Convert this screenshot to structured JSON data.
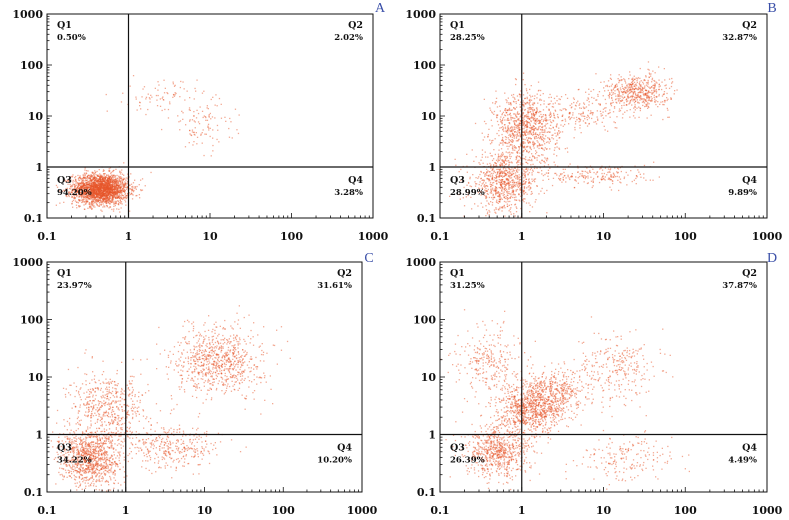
{
  "chart_data": [
    {
      "type": "scatter",
      "panel": "A",
      "x_scale": "log",
      "y_scale": "log",
      "xlim": [
        0.1,
        1000
      ],
      "ylim": [
        0.1,
        1000
      ],
      "x_ticks": [
        "0.1",
        "1",
        "10",
        "100",
        "1000"
      ],
      "y_ticks": [
        "0.1",
        "1",
        "10",
        "100",
        "1000"
      ],
      "gate": {
        "x": 1,
        "y": 1
      },
      "quadrants": [
        {
          "name": "Q1",
          "percent": "0.50%"
        },
        {
          "name": "Q2",
          "percent": "2.02%"
        },
        {
          "name": "Q3",
          "percent": "94.20%"
        },
        {
          "name": "Q4",
          "percent": "3.28%"
        }
      ],
      "clusters": [
        {
          "x": 0.45,
          "y": 0.38,
          "sx": 0.17,
          "sy": 0.15,
          "weight": 0.93
        },
        {
          "x": 2.5,
          "y": 25,
          "sx": 0.22,
          "sy": 0.17,
          "weight": 0.03
        },
        {
          "x": 8,
          "y": 7,
          "sx": 0.2,
          "sy": 0.25,
          "weight": 0.04
        }
      ],
      "color": "#e8552a"
    },
    {
      "type": "scatter",
      "panel": "B",
      "x_scale": "log",
      "y_scale": "log",
      "xlim": [
        0.1,
        1000
      ],
      "ylim": [
        0.1,
        1000
      ],
      "x_ticks": [
        "0.1",
        "1",
        "10",
        "100",
        "1000"
      ],
      "y_ticks": [
        "0.1",
        "1",
        "10",
        "100",
        "1000"
      ],
      "gate": {
        "x": 1,
        "y": 1
      },
      "quadrants": [
        {
          "name": "Q1",
          "percent": "28.25%"
        },
        {
          "name": "Q2",
          "percent": "32.87%"
        },
        {
          "name": "Q3",
          "percent": "28.99%"
        },
        {
          "name": "Q4",
          "percent": "9.89%"
        }
      ],
      "clusters": [
        {
          "x": 0.6,
          "y": 0.5,
          "sx": 0.2,
          "sy": 0.28,
          "weight": 0.3
        },
        {
          "x": 1.1,
          "y": 6,
          "sx": 0.2,
          "sy": 0.35,
          "weight": 0.35
        },
        {
          "x": 25,
          "y": 30,
          "sx": 0.2,
          "sy": 0.18,
          "weight": 0.2
        },
        {
          "x": 8,
          "y": 0.7,
          "sx": 0.35,
          "sy": 0.12,
          "weight": 0.08
        },
        {
          "x": 5,
          "y": 12,
          "sx": 0.25,
          "sy": 0.2,
          "weight": 0.07
        }
      ],
      "color": "#e8552a"
    },
    {
      "type": "scatter",
      "panel": "C",
      "x_scale": "log",
      "y_scale": "log",
      "xlim": [
        0.1,
        1000
      ],
      "ylim": [
        0.1,
        1000
      ],
      "x_ticks": [
        "0.1",
        "1",
        "10",
        "100",
        "1000"
      ],
      "y_ticks": [
        "0.1",
        "1",
        "10",
        "100",
        "1000"
      ],
      "gate": {
        "x": 1,
        "y": 1
      },
      "quadrants": [
        {
          "name": "Q1",
          "percent": "23.97%"
        },
        {
          "name": "Q2",
          "percent": "31.61%"
        },
        {
          "name": "Q3",
          "percent": "34.22%"
        },
        {
          "name": "Q4",
          "percent": "10.20%"
        }
      ],
      "clusters": [
        {
          "x": 0.35,
          "y": 0.4,
          "sx": 0.2,
          "sy": 0.25,
          "weight": 0.38
        },
        {
          "x": 0.6,
          "y": 3,
          "sx": 0.25,
          "sy": 0.3,
          "weight": 0.2
        },
        {
          "x": 15,
          "y": 20,
          "sx": 0.28,
          "sy": 0.3,
          "weight": 0.3
        },
        {
          "x": 4,
          "y": 0.6,
          "sx": 0.3,
          "sy": 0.18,
          "weight": 0.12
        }
      ],
      "color": "#e8552a"
    },
    {
      "type": "scatter",
      "panel": "D",
      "x_scale": "log",
      "y_scale": "log",
      "xlim": [
        0.1,
        1000
      ],
      "ylim": [
        0.1,
        1000
      ],
      "x_ticks": [
        "0.1",
        "1",
        "10",
        "100",
        "1000"
      ],
      "y_ticks": [
        "0.1",
        "1",
        "10",
        "100",
        "1000"
      ],
      "gate": {
        "x": 1,
        "y": 1
      },
      "quadrants": [
        {
          "name": "Q1",
          "percent": "31.25%"
        },
        {
          "name": "Q2",
          "percent": "37.87%"
        },
        {
          "name": "Q3",
          "percent": "26.39%"
        },
        {
          "name": "Q4",
          "percent": "4.49%"
        }
      ],
      "clusters": [
        {
          "x": 0.5,
          "y": 0.5,
          "sx": 0.2,
          "sy": 0.22,
          "weight": 0.26
        },
        {
          "x": 1.3,
          "y": 3,
          "sx": 0.2,
          "sy": 0.22,
          "weight": 0.35
        },
        {
          "x": 3,
          "y": 6,
          "sx": 0.2,
          "sy": 0.2,
          "weight": 0.12
        },
        {
          "x": 0.4,
          "y": 20,
          "sx": 0.2,
          "sy": 0.3,
          "weight": 0.1
        },
        {
          "x": 15,
          "y": 15,
          "sx": 0.25,
          "sy": 0.3,
          "weight": 0.1
        },
        {
          "x": 20,
          "y": 0.4,
          "sx": 0.3,
          "sy": 0.2,
          "weight": 0.07
        }
      ],
      "color": "#e8552a"
    }
  ]
}
